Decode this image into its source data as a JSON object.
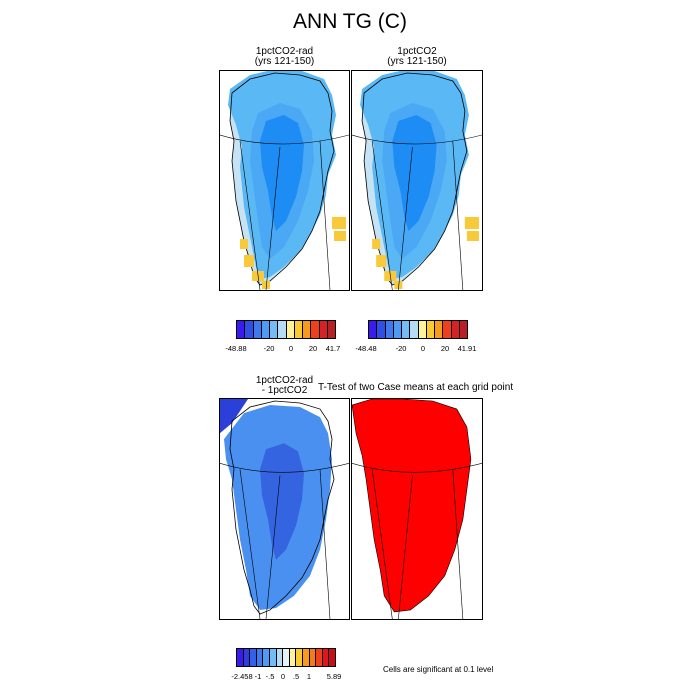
{
  "title": "ANN TG (C)",
  "panels": {
    "rad": {
      "line1": "1pctCO2-rad",
      "line2": "(yrs 121-150)"
    },
    "ctl": {
      "line1": "1pctCO2",
      "line2": "(yrs 121-150)"
    },
    "diff": {
      "line1": "1pctCO2-rad",
      "line2": "- 1pctCO2"
    },
    "ttest": {
      "title": "T-Test of two Case means at each grid point"
    }
  },
  "colorbars": {
    "rad": {
      "colors": [
        "#3b1af0",
        "#2f4ee6",
        "#3f79ef",
        "#4d9bf4",
        "#74bcf6",
        "#b5dbf5",
        "#fef39a",
        "#f8cb31",
        "#f59c1c",
        "#f03f1c",
        "#d52226",
        "#b91f26"
      ],
      "labels": [
        "-48.88",
        "-20",
        "0",
        "20",
        "41.7"
      ]
    },
    "ctl": {
      "colors": [
        "#3b1af0",
        "#2f4ee6",
        "#3f79ef",
        "#4d9bf4",
        "#74bcf6",
        "#b5dbf5",
        "#fef39a",
        "#f8cb31",
        "#f59c1c",
        "#f03f1c",
        "#d52226",
        "#b91f26"
      ],
      "labels": [
        "-48.48",
        "-20",
        "0",
        "20",
        "41.91"
      ]
    },
    "diff": {
      "colors": [
        "#3b1af0",
        "#2f3de0",
        "#3360e8",
        "#3f79ef",
        "#4d9bf4",
        "#74bcf6",
        "#b5dbf5",
        "#e7f2f6",
        "#fef39a",
        "#f8cb31",
        "#f59c1c",
        "#f57a1b",
        "#f03f1c",
        "#e0161c",
        "#c80f17"
      ],
      "labels": [
        "-2.458",
        "-1",
        "-.5",
        "0",
        ".5",
        "1",
        "5.89"
      ]
    }
  },
  "significance_note": "Cells are significant at 0.1 level",
  "colors": {
    "ice_core": "#1e8cf5",
    "ice_mid": "#4aa8f5",
    "ice_outer": "#5ab8f5",
    "ice_edge": "#c6e3f5",
    "warm": "#f8c938",
    "diff_fill": "#4a90f0",
    "diff_core": "#3464e0",
    "diff_deep": "#2a40d8",
    "significant": "#ff0000"
  }
}
